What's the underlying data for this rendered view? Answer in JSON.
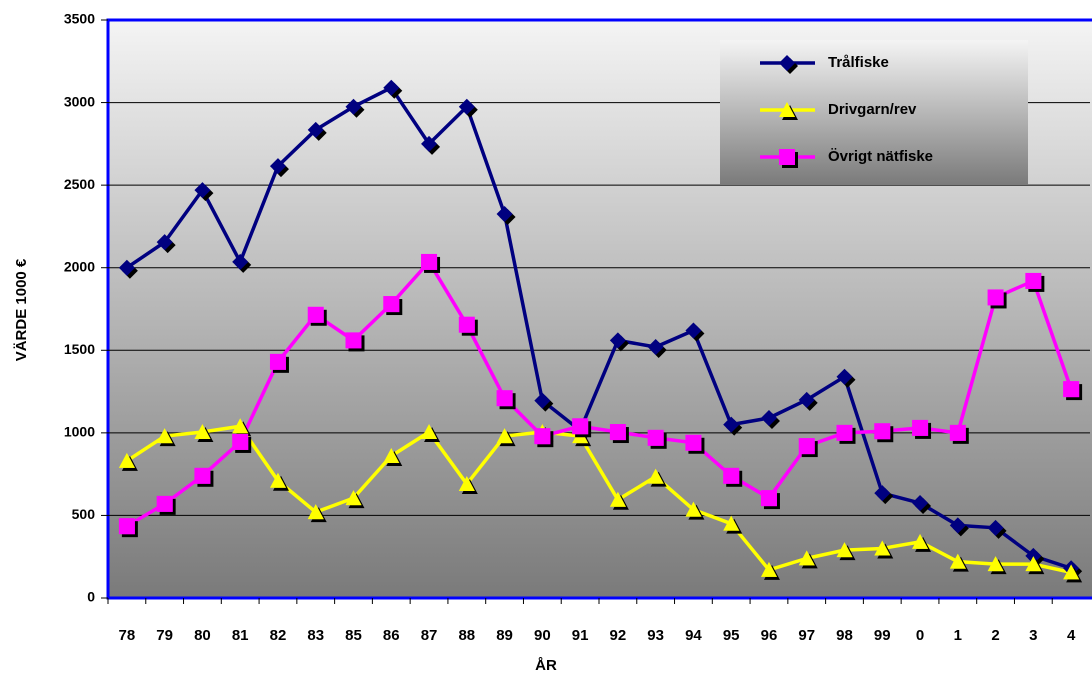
{
  "chart_data": {
    "type": "line",
    "x_label": "ÅR",
    "y_label": "VÄRDE 1000 €",
    "categories": [
      "78",
      "79",
      "80",
      "81",
      "82",
      "83",
      "85",
      "86",
      "87",
      "88",
      "89",
      "90",
      "91",
      "92",
      "93",
      "94",
      "95",
      "96",
      "97",
      "98",
      "99",
      "0",
      "1",
      "2",
      "3",
      "4"
    ],
    "series": [
      {
        "name": "Trålfiske",
        "color": "#000080",
        "marker": "diamond",
        "values": [
          2000,
          2155,
          2470,
          2035,
          2615,
          2835,
          2975,
          3090,
          2750,
          2975,
          2325,
          1195,
          1015,
          1560,
          1520,
          1620,
          1050,
          1090,
          1200,
          1340,
          635,
          575,
          440,
          425,
          255,
          180
        ]
      },
      {
        "name": "Drivgarn/rev",
        "color": "#ffff00",
        "marker": "triangle",
        "values": [
          830,
          980,
          1005,
          1040,
          710,
          520,
          605,
          860,
          1005,
          690,
          980,
          1005,
          980,
          595,
          735,
          535,
          450,
          170,
          240,
          290,
          300,
          340,
          220,
          205,
          205,
          155
        ]
      },
      {
        "name": "Övrigt nätfiske",
        "color": "#ff00ff",
        "marker": "square",
        "values": [
          435,
          570,
          740,
          945,
          1430,
          1715,
          1560,
          1780,
          2035,
          1655,
          1210,
          980,
          1040,
          1005,
          970,
          940,
          740,
          605,
          920,
          1000,
          1010,
          1030,
          1000,
          1820,
          1920,
          1265
        ]
      }
    ],
    "ylim": [
      0,
      3500
    ],
    "yticks": [
      0,
      500,
      1000,
      1500,
      2000,
      2500,
      3000,
      3500
    ],
    "grid": true,
    "legend": "top-right"
  }
}
